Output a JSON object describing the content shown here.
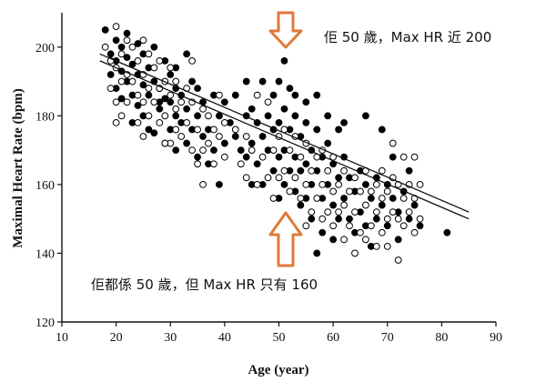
{
  "chart_data": {
    "type": "scatter",
    "title": "",
    "xlabel": "Age (year)",
    "ylabel": "Maximal Heart Rate (bpm)",
    "xlim": [
      10,
      90
    ],
    "ylim": [
      120,
      210
    ],
    "xticks": [
      "10",
      "20",
      "30",
      "40",
      "50",
      "60",
      "70",
      "80",
      "90"
    ],
    "yticks": [
      "120",
      "140",
      "160",
      "180",
      "200"
    ],
    "grid": false,
    "series": [
      {
        "marker": "filled-circle",
        "color": "#000000",
        "points": [
          [
            18,
            205
          ],
          [
            19,
            198
          ],
          [
            19,
            192
          ],
          [
            20,
            202
          ],
          [
            20,
            196
          ],
          [
            20,
            188
          ],
          [
            21,
            200
          ],
          [
            21,
            193
          ],
          [
            21,
            185
          ],
          [
            22,
            204
          ],
          [
            22,
            197
          ],
          [
            22,
            190
          ],
          [
            23,
            195
          ],
          [
            23,
            186
          ],
          [
            24,
            201
          ],
          [
            24,
            192
          ],
          [
            24,
            183
          ],
          [
            25,
            198
          ],
          [
            25,
            189
          ],
          [
            25,
            180
          ],
          [
            26,
            194
          ],
          [
            26,
            186
          ],
          [
            27,
            200
          ],
          [
            27,
            190
          ],
          [
            27,
            175
          ],
          [
            28,
            188
          ],
          [
            28,
            182
          ],
          [
            29,
            196
          ],
          [
            29,
            185
          ],
          [
            29,
            172
          ],
          [
            30,
            192
          ],
          [
            30,
            184
          ],
          [
            30,
            176
          ],
          [
            31,
            188
          ],
          [
            31,
            180
          ],
          [
            31,
            170
          ],
          [
            32,
            186
          ],
          [
            32,
            178
          ],
          [
            33,
            182
          ],
          [
            33,
            172
          ],
          [
            34,
            190
          ],
          [
            34,
            176
          ],
          [
            35,
            180
          ],
          [
            35,
            168
          ],
          [
            36,
            184
          ],
          [
            36,
            174
          ],
          [
            37,
            176
          ],
          [
            37,
            166
          ],
          [
            38,
            170
          ],
          [
            39,
            180
          ],
          [
            39,
            160
          ],
          [
            40,
            184
          ],
          [
            40,
            172
          ],
          [
            41,
            178
          ],
          [
            42,
            174
          ],
          [
            43,
            170
          ],
          [
            44,
            190
          ],
          [
            44,
            180
          ],
          [
            44,
            168
          ],
          [
            45,
            182
          ],
          [
            45,
            172
          ],
          [
            46,
            178
          ],
          [
            46,
            166
          ],
          [
            47,
            174
          ],
          [
            47,
            160
          ],
          [
            48,
            180
          ],
          [
            48,
            170
          ],
          [
            49,
            176
          ],
          [
            49,
            164
          ],
          [
            50,
            190
          ],
          [
            50,
            178
          ],
          [
            50,
            168
          ],
          [
            50,
            156
          ],
          [
            51,
            196
          ],
          [
            51,
            182
          ],
          [
            51,
            170
          ],
          [
            51,
            160
          ],
          [
            52,
            188
          ],
          [
            52,
            176
          ],
          [
            52,
            164
          ],
          [
            53,
            180
          ],
          [
            53,
            168
          ],
          [
            53,
            158
          ],
          [
            54,
            174
          ],
          [
            54,
            164
          ],
          [
            54,
            154
          ],
          [
            55,
            178
          ],
          [
            55,
            166
          ],
          [
            55,
            156
          ],
          [
            56,
            170
          ],
          [
            56,
            160
          ],
          [
            56,
            150
          ],
          [
            57,
            176
          ],
          [
            57,
            164
          ],
          [
            57,
            140
          ],
          [
            58,
            168
          ],
          [
            58,
            156
          ],
          [
            58,
            146
          ],
          [
            59,
            172
          ],
          [
            59,
            160
          ],
          [
            60,
            166
          ],
          [
            60,
            154
          ],
          [
            60,
            144
          ],
          [
            61,
            176
          ],
          [
            61,
            162
          ],
          [
            61,
            150
          ],
          [
            62,
            168
          ],
          [
            62,
            156
          ],
          [
            63,
            162
          ],
          [
            63,
            150
          ],
          [
            64,
            158
          ],
          [
            64,
            146
          ],
          [
            65,
            164
          ],
          [
            65,
            152
          ],
          [
            66,
            160
          ],
          [
            66,
            148
          ],
          [
            67,
            156
          ],
          [
            67,
            142
          ],
          [
            68,
            162
          ],
          [
            68,
            150
          ],
          [
            69,
            154
          ],
          [
            70,
            160
          ],
          [
            70,
            148
          ],
          [
            71,
            156
          ],
          [
            72,
            152
          ],
          [
            72,
            144
          ],
          [
            73,
            158
          ],
          [
            74,
            150
          ],
          [
            75,
            154
          ],
          [
            76,
            148
          ],
          [
            81,
            146
          ],
          [
            23,
            178
          ],
          [
            26,
            176
          ],
          [
            28,
            184
          ],
          [
            31,
            194
          ],
          [
            33,
            198
          ],
          [
            35,
            188
          ],
          [
            38,
            186
          ],
          [
            42,
            186
          ],
          [
            45,
            160
          ],
          [
            47,
            190
          ],
          [
            49,
            186
          ],
          [
            53,
            186
          ],
          [
            55,
            184
          ],
          [
            57,
            186
          ],
          [
            59,
            180
          ],
          [
            62,
            178
          ],
          [
            66,
            180
          ],
          [
            69,
            176
          ],
          [
            71,
            168
          ],
          [
            74,
            164
          ]
        ]
      },
      {
        "marker": "open-circle",
        "color": "#000000",
        "points": [
          [
            18,
            200
          ],
          [
            19,
            196
          ],
          [
            19,
            188
          ],
          [
            20,
            206
          ],
          [
            20,
            194
          ],
          [
            20,
            184
          ],
          [
            21,
            198
          ],
          [
            21,
            190
          ],
          [
            21,
            180
          ],
          [
            22,
            202
          ],
          [
            22,
            192
          ],
          [
            22,
            184
          ],
          [
            23,
            200
          ],
          [
            23,
            190
          ],
          [
            24,
            196
          ],
          [
            24,
            186
          ],
          [
            24,
            178
          ],
          [
            25,
            202
          ],
          [
            25,
            192
          ],
          [
            25,
            184
          ],
          [
            26,
            198
          ],
          [
            26,
            188
          ],
          [
            26,
            180
          ],
          [
            27,
            194
          ],
          [
            27,
            184
          ],
          [
            28,
            196
          ],
          [
            28,
            188
          ],
          [
            28,
            178
          ],
          [
            29,
            190
          ],
          [
            29,
            180
          ],
          [
            30,
            194
          ],
          [
            30,
            186
          ],
          [
            30,
            172
          ],
          [
            31,
            190
          ],
          [
            31,
            182
          ],
          [
            31,
            176
          ],
          [
            32,
            184
          ],
          [
            32,
            174
          ],
          [
            33,
            188
          ],
          [
            33,
            178
          ],
          [
            34,
            184
          ],
          [
            34,
            170
          ],
          [
            35,
            176
          ],
          [
            35,
            166
          ],
          [
            36,
            182
          ],
          [
            36,
            170
          ],
          [
            37,
            180
          ],
          [
            37,
            172
          ],
          [
            38,
            176
          ],
          [
            38,
            166
          ],
          [
            39,
            186
          ],
          [
            39,
            174
          ],
          [
            40,
            178
          ],
          [
            40,
            168
          ],
          [
            42,
            176
          ],
          [
            43,
            166
          ],
          [
            44,
            174
          ],
          [
            44,
            162
          ],
          [
            45,
            170
          ],
          [
            46,
            160
          ],
          [
            47,
            168
          ],
          [
            48,
            162
          ],
          [
            48,
            184
          ],
          [
            49,
            170
          ],
          [
            49,
            156
          ],
          [
            50,
            174
          ],
          [
            50,
            162
          ],
          [
            51,
            176
          ],
          [
            51,
            164
          ],
          [
            52,
            170
          ],
          [
            52,
            158
          ],
          [
            53,
            174
          ],
          [
            53,
            162
          ],
          [
            54,
            168
          ],
          [
            54,
            156
          ],
          [
            55,
            172
          ],
          [
            55,
            160
          ],
          [
            55,
            148
          ],
          [
            56,
            164
          ],
          [
            56,
            152
          ],
          [
            57,
            168
          ],
          [
            57,
            156
          ],
          [
            58,
            170
          ],
          [
            58,
            160
          ],
          [
            58,
            150
          ],
          [
            59,
            164
          ],
          [
            59,
            152
          ],
          [
            60,
            168
          ],
          [
            60,
            158
          ],
          [
            60,
            148
          ],
          [
            61,
            160
          ],
          [
            61,
            152
          ],
          [
            62,
            164
          ],
          [
            62,
            154
          ],
          [
            62,
            144
          ],
          [
            63,
            158
          ],
          [
            63,
            148
          ],
          [
            64,
            162
          ],
          [
            64,
            152
          ],
          [
            64,
            140
          ],
          [
            65,
            158
          ],
          [
            65,
            146
          ],
          [
            66,
            164
          ],
          [
            66,
            154
          ],
          [
            66,
            144
          ],
          [
            67,
            158
          ],
          [
            67,
            148
          ],
          [
            68,
            160
          ],
          [
            68,
            152
          ],
          [
            68,
            142
          ],
          [
            69,
            164
          ],
          [
            69,
            156
          ],
          [
            69,
            146
          ],
          [
            70,
            158
          ],
          [
            70,
            150
          ],
          [
            70,
            142
          ],
          [
            71,
            172
          ],
          [
            71,
            162
          ],
          [
            71,
            152
          ],
          [
            72,
            160
          ],
          [
            72,
            150
          ],
          [
            72,
            138
          ],
          [
            73,
            168
          ],
          [
            73,
            156
          ],
          [
            73,
            148
          ],
          [
            74,
            160
          ],
          [
            74,
            152
          ],
          [
            75,
            168
          ],
          [
            75,
            156
          ],
          [
            75,
            146
          ],
          [
            76,
            160
          ],
          [
            76,
            150
          ],
          [
            20,
            178
          ],
          [
            25,
            174
          ],
          [
            29,
            172
          ],
          [
            34,
            196
          ],
          [
            36,
            160
          ],
          [
            46,
            186
          ]
        ]
      }
    ],
    "regression_lines": [
      {
        "x": [
          17,
          85
        ],
        "y": [
          198,
          152
        ]
      },
      {
        "x": [
          17,
          85
        ],
        "y": [
          196,
          150
        ]
      }
    ],
    "annotations": [
      {
        "text": "佢 50 歲，Max HR 近 200",
        "arrow": "down",
        "arrow_color": "#e07a3a"
      },
      {
        "text": "佢都係 50 歲，但 Max HR 只有 160",
        "arrow": "up",
        "arrow_color": "#e07a3a"
      }
    ]
  }
}
